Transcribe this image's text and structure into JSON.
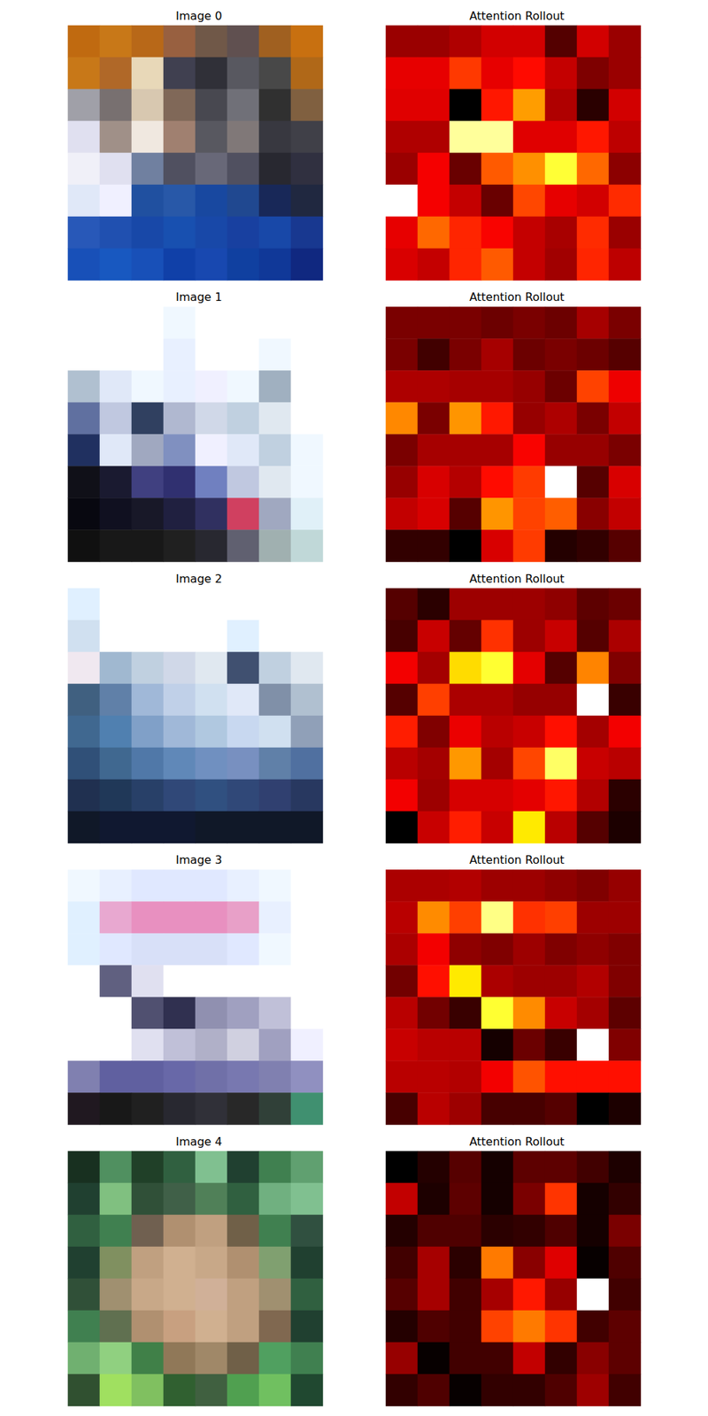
{
  "chart_data": [
    {
      "type": "image",
      "title": "Image 0",
      "tick_labels": false,
      "pixels": [
        [
          "#c06a10",
          "#c87818",
          "#b86818",
          "#986040",
          "#705848",
          "#605050",
          "#a06020",
          "#c87010"
        ],
        [
          "#c87818",
          "#b06828",
          "#e8d8b8",
          "#404050",
          "#303038",
          "#585860",
          "#484848",
          "#b06818"
        ],
        [
          "#a0a0a8",
          "#787070",
          "#d8c8b0",
          "#806858",
          "#484850",
          "#707078",
          "#303030",
          "#806040"
        ],
        [
          "#e0e0f0",
          "#a09088",
          "#f0e8e0",
          "#a08070",
          "#585860",
          "#807878",
          "#383840",
          "#404048"
        ],
        [
          "#f0f0f8",
          "#e0e0f0",
          "#7080a0",
          "#505060",
          "#686878",
          "#505060",
          "#282830",
          "#303040"
        ],
        [
          "#e0e8f8",
          "#f0f0ff",
          "#2050a0",
          "#2858a8",
          "#1848a0",
          "#204890",
          "#182858",
          "#202840"
        ],
        [
          "#2858b8",
          "#2050b0",
          "#1848a8",
          "#1850b0",
          "#1848a8",
          "#1840a0",
          "#1848a8",
          "#183890"
        ],
        [
          "#1850b8",
          "#1858c0",
          "#1850b8",
          "#1040a8",
          "#1848b0",
          "#1040a0",
          "#103898",
          "#102880"
        ]
      ]
    },
    {
      "type": "heatmap",
      "title": "Attention Rollout",
      "color": "hot",
      "tick_labels": false,
      "cells": [
        [
          0.22,
          0.22,
          0.25,
          0.3,
          0.3,
          0.12,
          0.3,
          0.22
        ],
        [
          0.33,
          0.33,
          0.45,
          0.33,
          0.38,
          0.28,
          0.18,
          0.22
        ],
        [
          0.32,
          0.32,
          0.0,
          0.4,
          0.6,
          0.25,
          0.06,
          0.3
        ],
        [
          0.25,
          0.25,
          0.9,
          0.9,
          0.32,
          0.32,
          0.4,
          0.27
        ],
        [
          0.22,
          0.35,
          0.15,
          0.5,
          0.58,
          0.8,
          0.52,
          0.2
        ],
        [
          1.0,
          0.35,
          0.28,
          0.15,
          0.47,
          0.33,
          0.3,
          0.43
        ],
        [
          0.33,
          0.52,
          0.42,
          0.36,
          0.28,
          0.24,
          0.43,
          0.22
        ],
        [
          0.31,
          0.28,
          0.42,
          0.5,
          0.28,
          0.23,
          0.42,
          0.27
        ]
      ]
    },
    {
      "type": "image",
      "title": "Image 1",
      "tick_labels": false,
      "pixels": [
        [
          "#ffffff",
          "#ffffff",
          "#ffffff",
          "#f0f8ff",
          "#ffffff",
          "#ffffff",
          "#ffffff",
          "#ffffff"
        ],
        [
          "#ffffff",
          "#ffffff",
          "#ffffff",
          "#e8f0ff",
          "#ffffff",
          "#ffffff",
          "#f0f8ff",
          "#ffffff"
        ],
        [
          "#b0c0d0",
          "#e0e8f8",
          "#f0f8ff",
          "#e8f0ff",
          "#f0f0ff",
          "#f0f8ff",
          "#a0b0c0",
          "#ffffff"
        ],
        [
          "#6070a0",
          "#c0c8e0",
          "#304060",
          "#b0b8d0",
          "#d0d8e8",
          "#c0d0e0",
          "#e0e8f0",
          "#ffffff"
        ],
        [
          "#203060",
          "#e0e8f8",
          "#a0a8c0",
          "#8090c0",
          "#f0f0ff",
          "#e0e8f8",
          "#c0d0e0",
          "#f0f8ff"
        ],
        [
          "#101018",
          "#1a1a30",
          "#404080",
          "#303070",
          "#7080c0",
          "#c0c8e0",
          "#e0e8f0",
          "#f0f8ff"
        ],
        [
          "#080810",
          "#101020",
          "#181828",
          "#202040",
          "#303060",
          "#d04060",
          "#a0a8c0",
          "#e0f0f8"
        ],
        [
          "#101010",
          "#181818",
          "#181818",
          "#202020",
          "#282830",
          "#606070",
          "#a0b0b0",
          "#c0d8d8"
        ]
      ]
    },
    {
      "type": "heatmap",
      "title": "Attention Rollout",
      "color": "hot",
      "tick_labels": false,
      "cells": [
        [
          0.2,
          0.2,
          0.2,
          0.18,
          0.2,
          0.18,
          0.26,
          0.2
        ],
        [
          0.2,
          0.12,
          0.2,
          0.26,
          0.18,
          0.2,
          0.18,
          0.15
        ],
        [
          0.27,
          0.27,
          0.26,
          0.26,
          0.24,
          0.18,
          0.48,
          0.36
        ],
        [
          0.58,
          0.2,
          0.6,
          0.42,
          0.24,
          0.27,
          0.2,
          0.3
        ],
        [
          0.2,
          0.26,
          0.26,
          0.26,
          0.38,
          0.24,
          0.24,
          0.2
        ],
        [
          0.24,
          0.33,
          0.28,
          0.4,
          0.47,
          1.0,
          0.15,
          0.33
        ],
        [
          0.3,
          0.33,
          0.15,
          0.6,
          0.48,
          0.52,
          0.22,
          0.3
        ],
        [
          0.1,
          0.1,
          0.03,
          0.33,
          0.47,
          0.08,
          0.1,
          0.15
        ]
      ]
    },
    {
      "type": "image",
      "title": "Image 2",
      "tick_labels": false,
      "pixels": [
        [
          "#e0f0ff",
          "#ffffff",
          "#ffffff",
          "#ffffff",
          "#ffffff",
          "#ffffff",
          "#ffffff",
          "#ffffff"
        ],
        [
          "#d0e0f0",
          "#ffffff",
          "#ffffff",
          "#ffffff",
          "#ffffff",
          "#e0f0ff",
          "#ffffff",
          "#ffffff"
        ],
        [
          "#f0e8f0",
          "#a0b8d0",
          "#c0d0e0",
          "#d0d8e8",
          "#e0e8f0",
          "#405070",
          "#c0d0e0",
          "#e0e8f0"
        ],
        [
          "#406080",
          "#6080a8",
          "#a0b8d8",
          "#c0d0e8",
          "#d0e0f0",
          "#e0e8f8",
          "#8090a8",
          "#b0c0d0"
        ],
        [
          "#406890",
          "#5080b0",
          "#80a0c8",
          "#a0b8d8",
          "#b0c8e0",
          "#c8d8f0",
          "#d0e0f0",
          "#90a0b8"
        ],
        [
          "#305078",
          "#406890",
          "#5078a8",
          "#6088b8",
          "#7090c0",
          "#7890c0",
          "#6080a8",
          "#5070a0"
        ],
        [
          "#203050",
          "#203858",
          "#284068",
          "#304878",
          "#305080",
          "#304878",
          "#304070",
          "#283860"
        ],
        [
          "#101828",
          "#101830",
          "#101830",
          "#101830",
          "#101828",
          "#101828",
          "#101828",
          "#101828"
        ]
      ]
    },
    {
      "type": "heatmap",
      "title": "Attention Rollout",
      "color": "hot",
      "tick_labels": false,
      "cells": [
        [
          0.14,
          0.08,
          0.24,
          0.24,
          0.24,
          0.22,
          0.15,
          0.17
        ],
        [
          0.12,
          0.3,
          0.16,
          0.45,
          0.24,
          0.3,
          0.14,
          0.26
        ],
        [
          0.36,
          0.25,
          0.7,
          0.8,
          0.34,
          0.14,
          0.57,
          0.2
        ],
        [
          0.14,
          0.47,
          0.26,
          0.26,
          0.23,
          0.23,
          1.0,
          0.1
        ],
        [
          0.42,
          0.2,
          0.35,
          0.28,
          0.3,
          0.4,
          0.25,
          0.36
        ],
        [
          0.28,
          0.25,
          0.6,
          0.25,
          0.48,
          0.85,
          0.3,
          0.28
        ],
        [
          0.36,
          0.24,
          0.32,
          0.32,
          0.34,
          0.41,
          0.27,
          0.08
        ],
        [
          0.02,
          0.3,
          0.42,
          0.3,
          0.72,
          0.28,
          0.14,
          0.06
        ]
      ]
    },
    {
      "type": "image",
      "title": "Image 3",
      "tick_labels": false,
      "pixels": [
        [
          "#f0f8ff",
          "#e8f0ff",
          "#e0e8ff",
          "#e0e8ff",
          "#e0e8ff",
          "#e8f0ff",
          "#f0f8ff",
          "#ffffff"
        ],
        [
          "#e0f0ff",
          "#e8a8d0",
          "#e890c0",
          "#e890c0",
          "#e890c0",
          "#e8a0c8",
          "#e8f0ff",
          "#ffffff"
        ],
        [
          "#e0f0ff",
          "#e0e8ff",
          "#d8e0f8",
          "#d8e0f8",
          "#d8e0f8",
          "#e0e8ff",
          "#f0f8ff",
          "#ffffff"
        ],
        [
          "#ffffff",
          "#606080",
          "#e0e0f0",
          "#ffffff",
          "#ffffff",
          "#ffffff",
          "#ffffff",
          "#ffffff"
        ],
        [
          "#ffffff",
          "#ffffff",
          "#505070",
          "#303050",
          "#9090b0",
          "#a0a0c0",
          "#c0c0d8",
          "#ffffff"
        ],
        [
          "#ffffff",
          "#ffffff",
          "#e0e0f0",
          "#c0c0d8",
          "#b0b0c8",
          "#d0d0e0",
          "#a0a0c0",
          "#f0f0ff"
        ],
        [
          "#8080b0",
          "#6060a0",
          "#6060a0",
          "#6868a8",
          "#7070a8",
          "#7878b0",
          "#8080b0",
          "#9090c0"
        ],
        [
          "#201820",
          "#181818",
          "#202020",
          "#282830",
          "#303038",
          "#282828",
          "#304038",
          "#409070"
        ]
      ]
    },
    {
      "type": "heatmap",
      "title": "Attention Rollout",
      "color": "hot",
      "tick_labels": false,
      "cells": [
        [
          0.26,
          0.26,
          0.27,
          0.24,
          0.24,
          0.22,
          0.2,
          0.23
        ],
        [
          0.28,
          0.58,
          0.47,
          0.88,
          0.45,
          0.47,
          0.24,
          0.24
        ],
        [
          0.26,
          0.36,
          0.22,
          0.2,
          0.24,
          0.2,
          0.22,
          0.2
        ],
        [
          0.18,
          0.4,
          0.72,
          0.26,
          0.24,
          0.24,
          0.27,
          0.2
        ],
        [
          0.28,
          0.18,
          0.1,
          0.8,
          0.58,
          0.3,
          0.25,
          0.15
        ],
        [
          0.3,
          0.28,
          0.28,
          0.05,
          0.17,
          0.1,
          1.0,
          0.2
        ],
        [
          0.28,
          0.28,
          0.27,
          0.36,
          0.5,
          0.4,
          0.4,
          0.4
        ],
        [
          0.12,
          0.28,
          0.24,
          0.12,
          0.12,
          0.14,
          0.02,
          0.06
        ]
      ]
    },
    {
      "type": "image",
      "title": "Image 4",
      "tick_labels": false,
      "pixels": [
        [
          "#183020",
          "#509060",
          "#204028",
          "#306040",
          "#80c090",
          "#204030",
          "#408050",
          "#60a070"
        ],
        [
          "#204030",
          "#80c080",
          "#305038",
          "#406048",
          "#508058",
          "#306040",
          "#70b080",
          "#80c090"
        ],
        [
          "#306040",
          "#408050",
          "#706050",
          "#b09070",
          "#c0a080",
          "#706048",
          "#408050",
          "#305040"
        ],
        [
          "#204030",
          "#809060",
          "#c0a080",
          "#d0b090",
          "#c8a888",
          "#b09070",
          "#80a070",
          "#204030"
        ],
        [
          "#305038",
          "#a09070",
          "#c8a888",
          "#d0b090",
          "#d0b098",
          "#c0a080",
          "#a09070",
          "#306040"
        ],
        [
          "#408050",
          "#607050",
          "#b09070",
          "#c8a080",
          "#d0b090",
          "#c0a080",
          "#806850",
          "#204030"
        ],
        [
          "#70b070",
          "#90d080",
          "#408048",
          "#907858",
          "#a08868",
          "#706048",
          "#50a060",
          "#408050"
        ],
        [
          "#305030",
          "#a0e060",
          "#80c060",
          "#306030",
          "#406040",
          "#50a050",
          "#70c060",
          "#204830"
        ]
      ]
    },
    {
      "type": "heatmap",
      "title": "Attention Rollout",
      "color": "hot",
      "tick_labels": false,
      "cells": [
        [
          0.03,
          0.08,
          0.15,
          0.06,
          0.16,
          0.16,
          0.12,
          0.07
        ],
        [
          0.3,
          0.07,
          0.16,
          0.06,
          0.2,
          0.46,
          0.06,
          0.1
        ],
        [
          0.08,
          0.14,
          0.14,
          0.09,
          0.1,
          0.14,
          0.06,
          0.2
        ],
        [
          0.12,
          0.26,
          0.09,
          0.56,
          0.22,
          0.34,
          0.04,
          0.14
        ],
        [
          0.15,
          0.26,
          0.12,
          0.26,
          0.42,
          0.24,
          1.0,
          0.12
        ],
        [
          0.08,
          0.14,
          0.12,
          0.48,
          0.56,
          0.46,
          0.12,
          0.16
        ],
        [
          0.24,
          0.04,
          0.12,
          0.12,
          0.3,
          0.1,
          0.22,
          0.16
        ],
        [
          0.1,
          0.14,
          0.04,
          0.1,
          0.1,
          0.14,
          0.25,
          0.12
        ]
      ]
    }
  ]
}
